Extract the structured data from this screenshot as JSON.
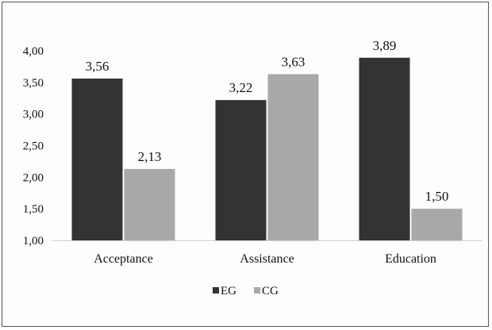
{
  "chart_data": {
    "type": "bar",
    "categories": [
      "Acceptance",
      "Assistance",
      "Education"
    ],
    "series": [
      {
        "name": "EG",
        "values": [
          3.56,
          3.22,
          3.89
        ],
        "labels": [
          "3,56",
          "3,22",
          "3,89"
        ],
        "color": "#333333"
      },
      {
        "name": "CG",
        "values": [
          2.13,
          3.63,
          1.5
        ],
        "labels": [
          "2,13",
          "3,63",
          "1,50"
        ],
        "color": "#a8a8a8"
      }
    ],
    "ylim": [
      1.0,
      4.0
    ],
    "yticks": [
      1.0,
      1.5,
      2.0,
      2.5,
      3.0,
      3.5,
      4.0
    ],
    "ytick_labels": [
      "1,00",
      "1,50",
      "2,00",
      "2,50",
      "3,00",
      "3,50",
      "4,00"
    ],
    "grid": false,
    "legend_position": "bottom"
  }
}
